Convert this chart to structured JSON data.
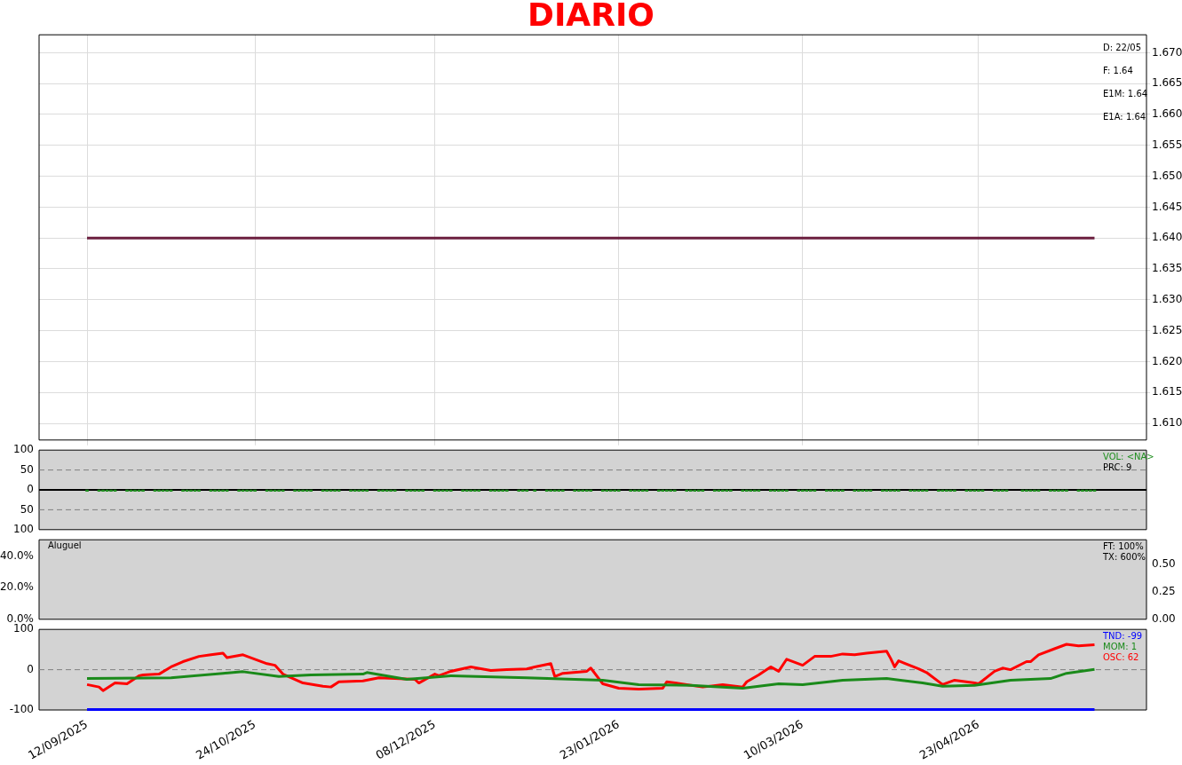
{
  "chart_data": [
    {
      "type": "line",
      "title": "DIARIO",
      "xlim": [
        "2025-08-31",
        "2026-06-04"
      ],
      "xticks": [
        {
          "value": "2025-09-12",
          "label": null
        },
        {
          "value": "2025-10-24",
          "label": null
        },
        {
          "value": "2025-12-08",
          "label": null
        },
        {
          "value": "2026-01-23",
          "label": null
        },
        {
          "value": "2026-03-10",
          "label": null
        },
        {
          "value": "2026-04-23",
          "label": null
        }
      ],
      "ylim": [
        1.6073,
        1.6729
      ],
      "yticks": [
        {
          "value": 1.61,
          "label": "1.610"
        },
        1.615,
        {
          "value": 1.62,
          "label": "1.620"
        },
        1.625,
        {
          "value": 1.63,
          "label": "1.630"
        },
        1.635,
        {
          "value": 1.64,
          "label": "1.640"
        },
        1.645,
        {
          "value": 1.65,
          "label": "1.650"
        },
        1.655,
        {
          "value": 1.66,
          "label": "1.660"
        },
        1.665,
        {
          "value": 1.67,
          "label": "1.670"
        }
      ],
      "grid": true,
      "tick_labels": "y",
      "series": [
        {
          "color": "#6b1f3f",
          "x": [
            "2025-09-12",
            "2026-05-22"
          ],
          "values": [
            1.64,
            1.64
          ]
        }
      ],
      "annotations": [
        "D: 22/05",
        "F: 1.64",
        "E1M: 1.64",
        "E1A: 1.64"
      ]
    },
    {
      "type": "bar",
      "xlim": [
        "2025-08-31",
        "2026-06-04"
      ],
      "ylim": [
        -100,
        100
      ],
      "yticks": [
        {
          "value": -100,
          "label": "100"
        },
        {
          "value": -50,
          "label": "50"
        },
        0,
        50,
        100
      ],
      "tick_labels": "y",
      "legend": "top right",
      "series": [
        {
          "name": "VOL: <NA>",
          "color": "#1f8f1f",
          "x": [
            "2025-09-12",
            "2025-09-15",
            "2025-09-16",
            "2025-09-17",
            "2025-09-18",
            "2025-09-19",
            "2025-09-22",
            "2025-09-23",
            "2025-09-24",
            "2025-09-25",
            "2025-09-26",
            "2025-09-29",
            "2025-09-30",
            "2025-10-01",
            "2025-10-02",
            "2025-10-03",
            "2025-10-06",
            "2025-10-07",
            "2025-10-08",
            "2025-10-09",
            "2025-10-10",
            "2025-10-13",
            "2025-10-14",
            "2025-10-15",
            "2025-10-16",
            "2025-10-17",
            "2025-10-20",
            "2025-10-21",
            "2025-10-22",
            "2025-10-23",
            "2025-10-24",
            "2025-10-27",
            "2025-10-28",
            "2025-10-29",
            "2025-10-30",
            "2025-10-31",
            "2025-11-03",
            "2025-11-04",
            "2025-11-05",
            "2025-11-06",
            "2025-11-07",
            "2025-11-10",
            "2025-11-11",
            "2025-11-12",
            "2025-11-13",
            "2025-11-14",
            "2025-11-17",
            "2025-11-18",
            "2025-11-19",
            "2025-11-20",
            "2025-11-21",
            "2025-11-24",
            "2025-11-25",
            "2025-11-26",
            "2025-11-27",
            "2025-11-28",
            "2025-12-01",
            "2025-12-02",
            "2025-12-03",
            "2025-12-04",
            "2025-12-05",
            "2025-12-08",
            "2025-12-09",
            "2025-12-10",
            "2025-12-11",
            "2025-12-12",
            "2025-12-15",
            "2025-12-16",
            "2025-12-17",
            "2025-12-18",
            "2025-12-19",
            "2025-12-22",
            "2025-12-23",
            "2025-12-24",
            "2025-12-25",
            "2025-12-26",
            "2025-12-29",
            "2025-12-30",
            "2025-12-31",
            "2026-01-02",
            "2026-01-05",
            "2026-01-06",
            "2026-01-07",
            "2026-01-08",
            "2026-01-09",
            "2026-01-12",
            "2026-01-13",
            "2026-01-14",
            "2026-01-15",
            "2026-01-16",
            "2026-01-19",
            "2026-01-20",
            "2026-01-21",
            "2026-01-22",
            "2026-01-23",
            "2026-01-26",
            "2026-01-27",
            "2026-01-28",
            "2026-01-29",
            "2026-01-30",
            "2026-02-02",
            "2026-02-03",
            "2026-02-04",
            "2026-02-05",
            "2026-02-06",
            "2026-02-09",
            "2026-02-10",
            "2026-02-11",
            "2026-02-12",
            "2026-02-13",
            "2026-02-16",
            "2026-02-17",
            "2026-02-18",
            "2026-02-19",
            "2026-02-20",
            "2026-02-23",
            "2026-02-24",
            "2026-02-25",
            "2026-02-26",
            "2026-02-27",
            "2026-03-02",
            "2026-03-03",
            "2026-03-04",
            "2026-03-05",
            "2026-03-06",
            "2026-03-09",
            "2026-03-10",
            "2026-03-11",
            "2026-03-12",
            "2026-03-13",
            "2026-03-16",
            "2026-03-17",
            "2026-03-18",
            "2026-03-19",
            "2026-03-20",
            "2026-03-23",
            "2026-03-24",
            "2026-03-25",
            "2026-03-26",
            "2026-03-27",
            "2026-03-30",
            "2026-03-31",
            "2026-04-01",
            "2026-04-02",
            "2026-04-03",
            "2026-04-06",
            "2026-04-07",
            "2026-04-08",
            "2026-04-09",
            "2026-04-10",
            "2026-04-13",
            "2026-04-14",
            "2026-04-15",
            "2026-04-16",
            "2026-04-17",
            "2026-04-20",
            "2026-04-21",
            "2026-04-22",
            "2026-04-23",
            "2026-04-24",
            "2026-04-27",
            "2026-04-28",
            "2026-04-29",
            "2026-04-30",
            "2026-05-04",
            "2026-05-05",
            "2026-05-06",
            "2026-05-07",
            "2026-05-08",
            "2026-05-11",
            "2026-05-12",
            "2026-05-13",
            "2026-05-14",
            "2026-05-15",
            "2026-05-18",
            "2026-05-19",
            "2026-05-20",
            "2026-05-21",
            "2026-05-22"
          ],
          "values": [
            -4,
            -4,
            -4,
            -4,
            -4,
            -4,
            -4,
            -4,
            -4,
            -4,
            -4,
            -4,
            -4,
            -4,
            -4,
            -4,
            -4,
            -4,
            -4,
            -4,
            -4,
            -4,
            -4,
            -4,
            -4,
            -4,
            -4,
            -4,
            -4,
            -4,
            -4,
            -4,
            -4,
            -4,
            -4,
            -4,
            -4,
            -4,
            -4,
            -4,
            -4,
            -4,
            -4,
            -4,
            -4,
            -4,
            -4,
            -4,
            -4,
            -4,
            -4,
            -4,
            -4,
            -4,
            -4,
            -4,
            -4,
            -4,
            -4,
            -4,
            -4,
            -4,
            -4,
            -4,
            -4,
            -4,
            -4,
            -4,
            -4,
            -4,
            -4,
            -4,
            -4,
            -4,
            -4,
            -4,
            -4,
            -4,
            -4,
            -4,
            -4,
            -4,
            -4,
            -4,
            -4,
            -4,
            -4,
            -4,
            -4,
            -4,
            -4,
            -4,
            -4,
            -4,
            -4,
            -4,
            -4,
            -4,
            -4,
            -4,
            -4,
            -4,
            -4,
            -4,
            -4,
            -4,
            -4,
            -4,
            -4,
            -4,
            -4,
            -4,
            -4,
            -4,
            -4,
            -4,
            -4,
            -4,
            -4,
            -4,
            -4,
            -4,
            -4,
            -4,
            -4,
            -4,
            -4,
            -4,
            -4,
            -4,
            -4,
            -4,
            -4,
            -4,
            -4,
            -4,
            -4,
            -4,
            -4,
            -4,
            -4,
            -4,
            -4,
            -4,
            -4,
            -4,
            -4,
            -4,
            -4,
            -4,
            -4,
            -4,
            -4,
            -4,
            -4,
            -4,
            -4,
            -4,
            -4,
            -4,
            -4,
            -4,
            -4,
            -4,
            -4,
            -4,
            -4,
            -4,
            -4,
            -4,
            -4,
            -4,
            -4,
            -4,
            -4,
            -4,
            -4,
            -4,
            -4
          ]
        }
      ],
      "ref_lines": [
        {
          "axis": "y",
          "value": 50,
          "line_style": "dashed",
          "color": "#808080"
        },
        {
          "axis": "y",
          "value": -50,
          "line_style": "dashed",
          "color": "#808080"
        },
        {
          "axis": "y",
          "value": 0,
          "line_style": "solid",
          "color": "#000000"
        }
      ],
      "annotations": [
        "PRC: 9"
      ]
    },
    {
      "type": "line",
      "title": "Aluguel",
      "xlim": [
        "2025-08-31",
        "2026-06-04"
      ],
      "ylim": [
        0,
        50.4
      ],
      "yticks": [
        {
          "value": 0,
          "label": "0.0%"
        },
        {
          "value": 20,
          "label": "20.0%"
        },
        {
          "value": 40,
          "label": "40.0%"
        }
      ],
      "y2lim": [
        0,
        0.72
      ],
      "y2ticks": [
        {
          "value": 0,
          "label": "0.00"
        },
        0.25,
        {
          "value": 0.5,
          "label": "0.50"
        }
      ],
      "tick_labels": "y",
      "annotations": [
        "FT: 100%",
        "TX: 600%"
      ]
    },
    {
      "type": "line",
      "xlim": [
        "2025-08-31",
        "2026-06-04"
      ],
      "xticks": [
        {
          "value": "2025-09-12",
          "label": "12/09/2025"
        },
        {
          "value": "2025-10-24",
          "label": "24/10/2025"
        },
        {
          "value": "2025-12-08",
          "label": "08/12/2025"
        },
        {
          "value": "2026-01-23",
          "label": "23/01/2026"
        },
        {
          "value": "2026-03-10",
          "label": "10/03/2026"
        },
        {
          "value": "2026-04-23",
          "label": "23/04/2026"
        }
      ],
      "ylim": [
        -100,
        100
      ],
      "yticks": [
        -100,
        0,
        100
      ],
      "legend": "top right",
      "ref_lines": [
        {
          "axis": "y",
          "value": 0,
          "line_style": "dashed",
          "color": "#808080"
        }
      ],
      "series": [
        {
          "name": "TND: -99",
          "color": "#0000ff",
          "x": [
            "2025-09-12",
            "2026-05-22"
          ],
          "values": [
            -99,
            -99
          ]
        },
        {
          "name": "MOM: 1",
          "color": "#1a8a1a",
          "x": [
            "2025-09-12",
            "2025-10-03",
            "2025-10-16",
            "2025-10-21",
            "2025-10-30",
            "2025-11-07",
            "2025-11-20",
            "2025-11-21",
            "2025-12-01",
            "2025-12-12",
            "2025-12-31",
            "2026-01-19",
            "2026-01-28",
            "2026-02-10",
            "2026-02-23",
            "2026-03-04",
            "2026-03-10",
            "2026-03-20",
            "2026-03-31",
            "2026-04-09",
            "2026-04-14",
            "2026-04-22",
            "2026-05-01",
            "2026-05-11",
            "2026-05-15",
            "2026-05-22"
          ],
          "values": [
            -22,
            -20,
            -9,
            -5,
            -17,
            -13,
            -11,
            -7,
            -24,
            -15,
            -20,
            -26,
            -37,
            -39,
            -46,
            -35,
            -37,
            -26,
            -22,
            -33,
            -41,
            -39,
            -26,
            -22,
            -9,
            1
          ]
        },
        {
          "name": "OSC: 62",
          "color": "#ff0000",
          "x": [
            "2025-09-12",
            "2025-09-15",
            "2025-09-16",
            "2025-09-19",
            "2025-09-22",
            "2025-09-25",
            "2025-09-26",
            "2025-09-30",
            "2025-10-03",
            "2025-10-06",
            "2025-10-10",
            "2025-10-13",
            "2025-10-16",
            "2025-10-17",
            "2025-10-21",
            "2025-10-27",
            "2025-10-29",
            "2025-10-31",
            "2025-11-05",
            "2025-11-10",
            "2025-11-12",
            "2025-11-14",
            "2025-11-20",
            "2025-11-24",
            "2025-11-28",
            "2025-12-03",
            "2025-12-04",
            "2025-12-08",
            "2025-12-09",
            "2025-12-12",
            "2025-12-17",
            "2025-12-22",
            "2025-12-26",
            "2025-12-31",
            "2026-01-02",
            "2026-01-06",
            "2026-01-07",
            "2026-01-09",
            "2026-01-15",
            "2026-01-16",
            "2026-01-19",
            "2026-01-23",
            "2026-01-28",
            "2026-02-03",
            "2026-02-04",
            "2026-02-09",
            "2026-02-13",
            "2026-02-18",
            "2026-02-23",
            "2026-02-24",
            "2026-02-27",
            "2026-03-02",
            "2026-03-04",
            "2026-03-06",
            "2026-03-10",
            "2026-03-13",
            "2026-03-17",
            "2026-03-20",
            "2026-03-23",
            "2026-03-26",
            "2026-03-31",
            "2026-04-01",
            "2026-04-02",
            "2026-04-03",
            "2026-04-08",
            "2026-04-10",
            "2026-04-14",
            "2026-04-17",
            "2026-04-22",
            "2026-04-23",
            "2026-04-27",
            "2026-04-29",
            "2026-05-01",
            "2026-05-05",
            "2026-05-06",
            "2026-05-08",
            "2026-05-12",
            "2026-05-15",
            "2026-05-18",
            "2026-05-22"
          ],
          "values": [
            -37,
            -43,
            -52,
            -33,
            -35,
            -15,
            -13,
            -11,
            7,
            20,
            33,
            37,
            41,
            30,
            37,
            15,
            11,
            -11,
            -33,
            -41,
            -43,
            -30,
            -28,
            -20,
            -22,
            -24,
            -33,
            -11,
            -15,
            -4,
            7,
            -2,
            0,
            2,
            7,
            15,
            -17,
            -9,
            -4,
            4,
            -35,
            -46,
            -48,
            -46,
            -30,
            -37,
            -43,
            -37,
            -43,
            -30,
            -13,
            7,
            -4,
            26,
            11,
            33,
            33,
            39,
            37,
            41,
            46,
            28,
            7,
            22,
            2,
            -7,
            -37,
            -26,
            -33,
            -35,
            -4,
            4,
            0,
            20,
            20,
            37,
            52,
            63,
            59,
            62
          ]
        }
      ]
    }
  ]
}
